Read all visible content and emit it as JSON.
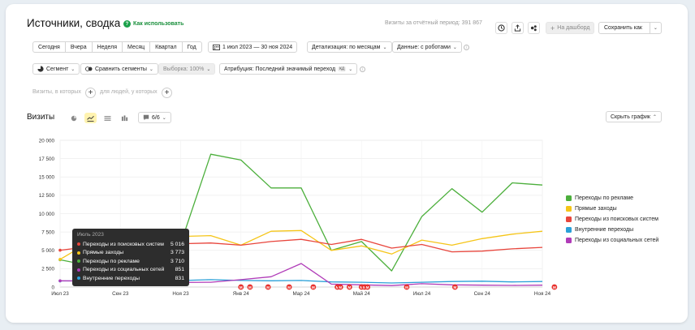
{
  "header": {
    "title": "Источники, сводка",
    "how_to_use": "Как использовать",
    "visits_total": "Визиты за отчётный период: 391 867",
    "to_dashboard": "На дашборд",
    "save_as": "Сохранить как"
  },
  "period": {
    "buttons": [
      "Сегодня",
      "Вчера",
      "Неделя",
      "Месяц",
      "Квартал",
      "Год"
    ],
    "range": "1 июл 2023 — 30 ноя 2024",
    "detail": "Детализация: по месяцам",
    "data": "Данные: с роботами"
  },
  "filters": {
    "segment": "Сегмент",
    "compare": "Сравнить сегменты",
    "sampling": "Выборка: 100%",
    "attribution": "Атрибуция: Последний значимый переход",
    "attribution_badge": "кд"
  },
  "conditions": {
    "visits_where": "Визиты, в которых",
    "people_where": "для людей, у которых"
  },
  "chart_panel": {
    "title": "Визиты",
    "series_count": "6/6",
    "hide_chart": "Скрыть график"
  },
  "chart_data": {
    "type": "line",
    "categories": [
      "Июл 23",
      "Авг 23",
      "Сен 23",
      "Окт 23",
      "Ноя 23",
      "Дек 23",
      "Янв 24",
      "Фев 24",
      "Мар 24",
      "Апр 24",
      "Май 24",
      "Июн 24",
      "Июл 24",
      "Авг 24",
      "Сен 24",
      "Окт 24",
      "Ноя 24"
    ],
    "x_tick_labels": [
      "Июл 23",
      "Сен 23",
      "Ноя 23",
      "Янв 24",
      "Мар 24",
      "Май 24",
      "Июл 24",
      "Сен 24",
      "Ноя 24"
    ],
    "y_ticks": [
      "0",
      "2 500",
      "5 000",
      "7 500",
      "10 000",
      "12 500",
      "15 000",
      "17 500",
      "20 000"
    ],
    "ylim": [
      0,
      20000
    ],
    "series": [
      {
        "name": "Переходы по рекламе",
        "color": "#4caf3c",
        "values": [
          3710,
          2900,
          2700,
          3200,
          5900,
          18100,
          17300,
          13500,
          13500,
          5000,
          6200,
          2200,
          9600,
          13400,
          10200,
          14200,
          13900
        ]
      },
      {
        "name": "Прямые заходы",
        "color": "#f5c518",
        "values": [
          3773,
          6200,
          6500,
          6300,
          6900,
          7000,
          5700,
          7600,
          7700,
          5000,
          5600,
          4500,
          6400,
          5700,
          6600,
          7200,
          7600
        ]
      },
      {
        "name": "Переходы из поисковых систем",
        "color": "#e8453c",
        "values": [
          5016,
          5500,
          5700,
          5900,
          5900,
          6000,
          5700,
          6200,
          6500,
          5800,
          6500,
          5300,
          5800,
          4800,
          4900,
          5200,
          5400
        ]
      },
      {
        "name": "Внутренние переходы",
        "color": "#2aa0d8",
        "values": [
          831,
          850,
          870,
          860,
          880,
          1000,
          900,
          850,
          900,
          700,
          650,
          550,
          650,
          750,
          800,
          700,
          750
        ]
      },
      {
        "name": "Переходы из социальных сетей",
        "color": "#b03bb8",
        "values": [
          851,
          820,
          790,
          700,
          620,
          650,
          1000,
          1400,
          3200,
          400,
          300,
          200,
          450,
          300,
          250,
          220,
          250
        ]
      }
    ],
    "annotation_label": "М",
    "annotation_months": [
      6,
      6.3,
      6.9,
      7.6,
      8.4,
      9.2,
      9.3,
      9.6,
      10.0,
      10.1,
      10.2,
      11.5,
      13.1,
      16.4
    ]
  },
  "legend": {
    "items": [
      {
        "name": "Переходы по рекламе",
        "color": "#4caf3c"
      },
      {
        "name": "Прямые заходы",
        "color": "#f5c518"
      },
      {
        "name": "Переходы из поисковых систем",
        "color": "#e8453c"
      },
      {
        "name": "Внутренние переходы",
        "color": "#2aa0d8"
      },
      {
        "name": "Переходы из социальных сетей",
        "color": "#b03bb8"
      }
    ]
  },
  "tooltip": {
    "title": "Июль 2023",
    "rows": [
      {
        "name": "Переходы из поисковых систем",
        "value": "5 016",
        "color": "#e8453c"
      },
      {
        "name": "Прямые заходы",
        "value": "3 773",
        "color": "#f5c518"
      },
      {
        "name": "Переходы по рекламе",
        "value": "3 710",
        "color": "#4caf3c"
      },
      {
        "name": "Переходы из социальных сетей",
        "value": "851",
        "color": "#b03bb8"
      },
      {
        "name": "Внутренние переходы",
        "value": "831",
        "color": "#2aa0d8"
      }
    ]
  }
}
